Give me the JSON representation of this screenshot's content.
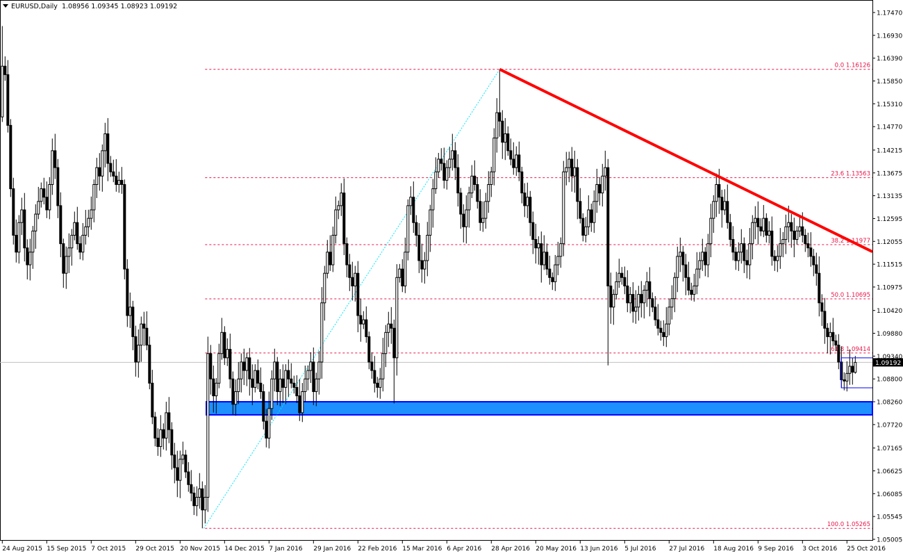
{
  "header": {
    "symbol": "EURUSD,Daily",
    "ohlc": "1.08956 1.09345 1.08923 1.09192"
  },
  "chart_data": {
    "type": "candlestick",
    "symbol": "EURUSD",
    "timeframe": "Daily",
    "ylim": [
      1.05005,
      1.1747
    ],
    "grid": false,
    "y_ticks": [
      "1.17470",
      "1.16930",
      "1.16390",
      "1.15850",
      "1.15310",
      "1.14770",
      "1.14215",
      "1.13675",
      "1.13135",
      "1.12595",
      "1.12055",
      "1.11515",
      "1.10975",
      "1.10420",
      "1.09880",
      "1.09340",
      "1.08800",
      "1.08260",
      "1.07720",
      "1.07165",
      "1.06625",
      "1.06085",
      "1.05545",
      "1.05005"
    ],
    "x_ticks": [
      "24 Aug 2015",
      "15 Sep 2015",
      "7 Oct 2015",
      "29 Oct 2015",
      "20 Nov 2015",
      "14 Dec 2015",
      "7 Jan 2016",
      "29 Jan 2016",
      "22 Feb 2016",
      "15 Mar 2016",
      "6 Apr 2016",
      "28 Apr 2016",
      "20 May 2016",
      "13 Jun 2016",
      "5 Jul 2016",
      "27 Jul 2016",
      "18 Aug 2016",
      "9 Sep 2016",
      "3 Oct 2016",
      "25 Oct 2016"
    ],
    "first_open": 1.15,
    "closes": [
      1.162,
      1.16,
      1.148,
      1.133,
      1.122,
      1.118,
      1.125,
      1.128,
      1.119,
      1.115,
      1.118,
      1.123,
      1.127,
      1.13,
      1.133,
      1.131,
      1.128,
      1.134,
      1.142,
      1.138,
      1.129,
      1.12,
      1.113,
      1.117,
      1.119,
      1.122,
      1.125,
      1.12,
      1.118,
      1.122,
      1.124,
      1.126,
      1.128,
      1.134,
      1.138,
      1.136,
      1.142,
      1.146,
      1.139,
      1.137,
      1.136,
      1.134,
      1.135,
      1.134,
      1.114,
      1.103,
      1.105,
      1.098,
      1.092,
      1.096,
      1.101,
      1.1,
      1.096,
      1.087,
      1.079,
      1.074,
      1.072,
      1.076,
      1.074,
      1.08,
      1.076,
      1.07,
      1.067,
      1.064,
      1.069,
      1.07,
      1.066,
      1.063,
      1.061,
      1.058,
      1.06,
      1.062,
      1.057,
      1.06,
      1.094,
      1.088,
      1.084,
      1.087,
      1.094,
      1.099,
      1.093,
      1.095,
      1.088,
      1.082,
      1.085,
      1.088,
      1.092,
      1.09,
      1.093,
      1.088,
      1.086,
      1.09,
      1.087,
      1.085,
      1.078,
      1.074,
      1.081,
      1.088,
      1.092,
      1.085,
      1.088,
      1.086,
      1.09,
      1.088,
      1.087,
      1.086,
      1.084,
      1.08,
      1.085,
      1.088,
      1.09,
      1.092,
      1.085,
      1.088,
      1.092,
      1.106,
      1.113,
      1.118,
      1.115,
      1.122,
      1.128,
      1.129,
      1.132,
      1.12,
      1.115,
      1.112,
      1.11,
      1.113,
      1.103,
      1.101,
      1.102,
      1.098,
      1.092,
      1.09,
      1.087,
      1.086,
      1.088,
      1.094,
      1.099,
      1.101,
      1.1,
      1.093,
      1.112,
      1.114,
      1.11,
      1.118,
      1.129,
      1.131,
      1.125,
      1.122,
      1.116,
      1.114,
      1.116,
      1.122,
      1.128,
      1.133,
      1.137,
      1.14,
      1.139,
      1.135,
      1.138,
      1.14,
      1.142,
      1.138,
      1.132,
      1.127,
      1.124,
      1.128,
      1.132,
      1.136,
      1.134,
      1.13,
      1.125,
      1.126,
      1.13,
      1.134,
      1.137,
      1.145,
      1.151,
      1.149,
      1.144,
      1.146,
      1.142,
      1.14,
      1.138,
      1.141,
      1.137,
      1.132,
      1.129,
      1.131,
      1.125,
      1.121,
      1.119,
      1.12,
      1.115,
      1.118,
      1.114,
      1.112,
      1.111,
      1.115,
      1.117,
      1.12,
      1.137,
      1.138,
      1.14,
      1.136,
      1.138,
      1.13,
      1.126,
      1.122,
      1.124,
      1.128,
      1.125,
      1.13,
      1.134,
      1.132,
      1.136,
      1.138,
      1.11,
      1.105,
      1.108,
      1.111,
      1.113,
      1.112,
      1.11,
      1.106,
      1.108,
      1.104,
      1.105,
      1.108,
      1.106,
      1.109,
      1.111,
      1.107,
      1.105,
      1.102,
      1.1,
      1.099,
      1.098,
      1.101,
      1.105,
      1.107,
      1.112,
      1.117,
      1.118,
      1.115,
      1.112,
      1.109,
      1.108,
      1.11,
      1.114,
      1.116,
      1.118,
      1.115,
      1.12,
      1.126,
      1.13,
      1.134,
      1.131,
      1.128,
      1.13,
      1.125,
      1.121,
      1.118,
      1.116,
      1.118,
      1.12,
      1.116,
      1.115,
      1.12,
      1.125,
      1.126,
      1.124,
      1.123,
      1.126,
      1.122,
      1.123,
      1.117,
      1.116,
      1.117,
      1.12,
      1.121,
      1.124,
      1.125,
      1.123,
      1.121,
      1.123,
      1.124,
      1.122,
      1.12,
      1.119,
      1.117,
      1.115,
      1.113,
      1.106,
      1.104,
      1.1,
      1.098,
      1.099,
      1.097,
      1.096,
      1.092,
      1.0878,
      1.0875,
      1.0893,
      1.091,
      1.0896,
      1.0919
    ],
    "last_candle": {
      "open": 1.08956,
      "high": 1.09345,
      "low": 1.08923,
      "close": 1.09192
    },
    "current_price": "1.09192",
    "fibonacci": {
      "high": 1.16126,
      "low": 1.05265,
      "levels": [
        {
          "label": "0.0 1.16126",
          "price": 1.16126
        },
        {
          "label": "23.6 1.13563",
          "price": 1.13563
        },
        {
          "label": "38.2 1.11977",
          "price": 1.11977
        },
        {
          "label": "50.0 1.10695",
          "price": 1.10695
        },
        {
          "label": "61.8 1.09414",
          "price": 1.09414
        },
        {
          "label": "100.0 1.05265",
          "price": 1.05265
        }
      ]
    },
    "trendline": {
      "from_price": 1.16126,
      "to_price": 1.1181
    },
    "support_zone": {
      "top": 1.0826,
      "bottom": 1.0795
    },
    "range_box": {
      "top": 1.093,
      "bottom": 1.0859
    },
    "colors": {
      "bull": "#ffffff",
      "bear": "#000000",
      "fib": "#e8174a",
      "trendline": "#ff0000",
      "zone_fill": "#1e90ff",
      "zone_border": "#0000ff",
      "fib_diagonal": "#00e5ff",
      "price_line": "#c0c0c0",
      "price_label_bg": "#000000"
    }
  }
}
